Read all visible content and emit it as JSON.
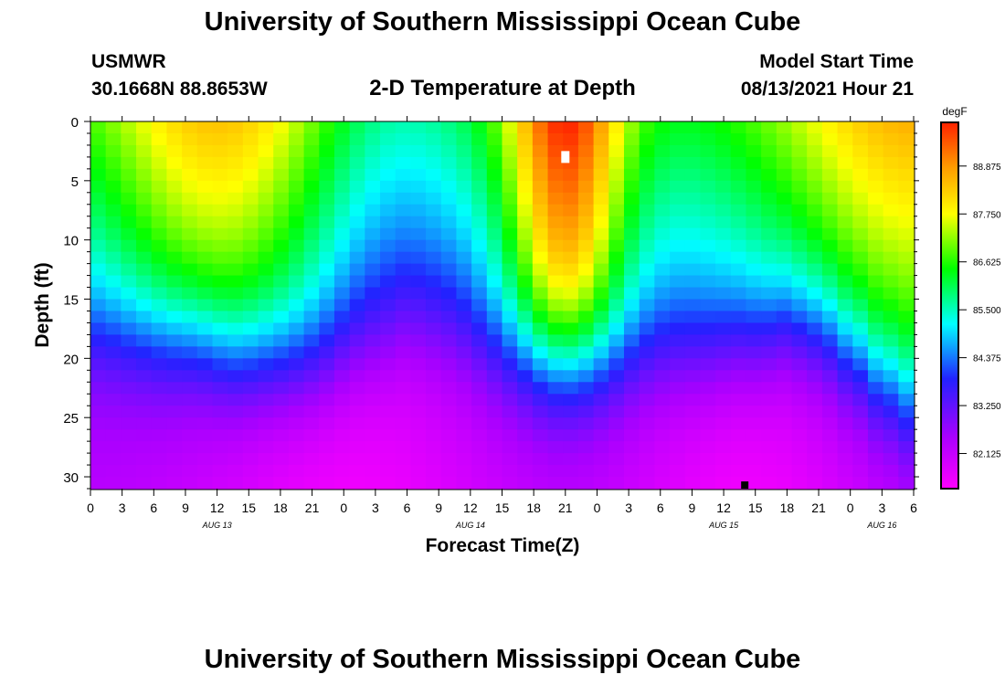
{
  "header": {
    "title": "University of Southern Mississippi Ocean Cube",
    "station": "USMWR",
    "coords": "30.1668N  88.8653W",
    "plot_title": "2-D Temperature at Depth",
    "model_start_label": "Model Start Time",
    "model_start_value": "08/13/2021 Hour 21"
  },
  "footer": {
    "title": "University of Southern Mississippi Ocean Cube"
  },
  "colors": {
    "palette": [
      "#ff00ff",
      "#9900ff",
      "#0000ff",
      "#00ffff",
      "#00ff00",
      "#ffff00",
      "#ff9900",
      "#ff0000"
    ]
  },
  "chart_data": {
    "type": "heatmap",
    "title": "2-D Temperature at Depth",
    "xlabel": "Forecast Time(Z)",
    "ylabel": "Depth (ft)",
    "colorbar_label": "degF",
    "x_ticks": [
      "0",
      "3",
      "6",
      "9",
      "12",
      "15",
      "18",
      "21",
      "0",
      "3",
      "6",
      "9",
      "12",
      "15",
      "18",
      "21",
      "0",
      "3",
      "6",
      "9",
      "12",
      "15",
      "18",
      "21",
      "0",
      "3",
      "6"
    ],
    "x_hours": [
      0,
      3,
      6,
      9,
      12,
      15,
      18,
      21,
      24,
      27,
      30,
      33,
      36,
      39,
      42,
      45,
      48,
      51,
      54,
      57,
      60,
      63,
      66,
      69,
      72,
      75,
      78
    ],
    "date_labels": [
      {
        "label": "AUG 13",
        "hour": 12
      },
      {
        "label": "AUG 14",
        "hour": 36
      },
      {
        "label": "AUG 15",
        "hour": 60
      },
      {
        "label": "AUG 16",
        "hour": 75
      }
    ],
    "y_ticks": [
      0,
      5,
      10,
      15,
      20,
      25,
      30
    ],
    "ylim": [
      0,
      31
    ],
    "xlim": [
      0,
      78
    ],
    "colorbar_ticks": [
      "88.875",
      "87.750",
      "86.625",
      "85.500",
      "84.375",
      "83.250",
      "82.125"
    ],
    "colorbar_values": [
      88.875,
      87.75,
      86.625,
      85.5,
      84.375,
      83.25,
      82.125
    ],
    "vmin": 81.3,
    "vmax": 89.9,
    "thermocline_profile": [
      {
        "hour": 0,
        "depth": 18.5
      },
      {
        "hour": 9,
        "depth": 19
      },
      {
        "hour": 15,
        "depth": 20.5
      },
      {
        "hour": 21,
        "depth": 21
      },
      {
        "hour": 27,
        "depth": 19.5
      },
      {
        "hour": 30,
        "depth": 18
      },
      {
        "hour": 33,
        "depth": 18.5
      },
      {
        "hour": 39,
        "depth": 20
      },
      {
        "hour": 45,
        "depth": 20.5
      },
      {
        "hour": 51,
        "depth": 20.5
      },
      {
        "hour": 57,
        "depth": 20.5
      },
      {
        "hour": 63,
        "depth": 19
      },
      {
        "hour": 66,
        "depth": 17.5
      },
      {
        "hour": 69,
        "depth": 18
      },
      {
        "hour": 72,
        "depth": 20
      },
      {
        "hour": 75,
        "depth": 22.5
      },
      {
        "hour": 78,
        "depth": 24.5
      }
    ],
    "markers": [
      {
        "name": "max-marker",
        "hour": 45,
        "depth": 3,
        "color": "#ffffff"
      },
      {
        "name": "min-marker",
        "hour": 62,
        "depth": 30.7,
        "color": "#000000"
      }
    ]
  }
}
